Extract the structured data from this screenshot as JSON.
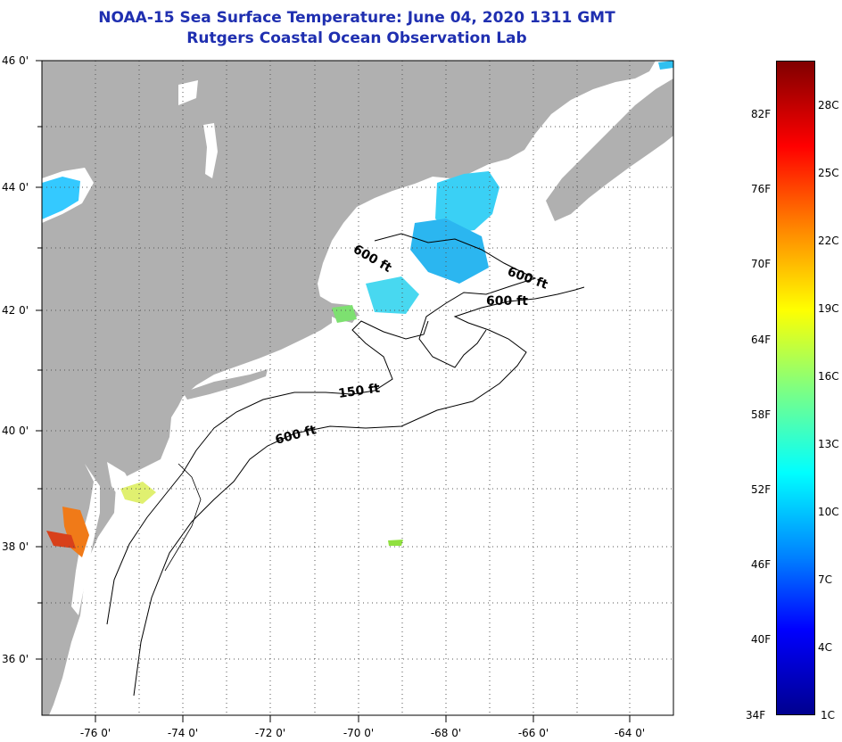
{
  "title": {
    "line1": "NOAA-15 Sea Surface Temperature:  June 04, 2020 1311 GMT",
    "line2": "Rutgers Coastal Ocean Observation Lab"
  },
  "map": {
    "lon_range": [
      -77,
      -63
    ],
    "lat_range": [
      35,
      46
    ],
    "lat_ticks": [
      "46 0'",
      "44 0'",
      "42 0'",
      "40 0'",
      "38 0'",
      "36 0'"
    ],
    "lon_ticks": [
      "-76 0'",
      "-74 0'",
      "-72 0'",
      "-70 0'",
      "-68 0'",
      "-66 0'",
      "-64 0'"
    ],
    "land_color": "#b0b0b0",
    "ocean_color": "#ffffff",
    "grid": "dotted",
    "contour_labels": [
      "600 ft",
      "600 ft",
      "600 ft",
      "150 ft",
      "600 ft"
    ]
  },
  "colorbar": {
    "fahrenheit_labels": [
      "82F",
      "76F",
      "70F",
      "64F",
      "58F",
      "52F",
      "46F",
      "40F",
      "34F"
    ],
    "celsius_labels": [
      "28C",
      "25C",
      "22C",
      "19C",
      "16C",
      "13C",
      "10C",
      "7C",
      "4C",
      "1C"
    ],
    "colors": [
      "#00008f",
      "#0000ff",
      "#0080ff",
      "#00ffff",
      "#80ff80",
      "#ffff00",
      "#ff8000",
      "#ff0000",
      "#800000"
    ]
  }
}
